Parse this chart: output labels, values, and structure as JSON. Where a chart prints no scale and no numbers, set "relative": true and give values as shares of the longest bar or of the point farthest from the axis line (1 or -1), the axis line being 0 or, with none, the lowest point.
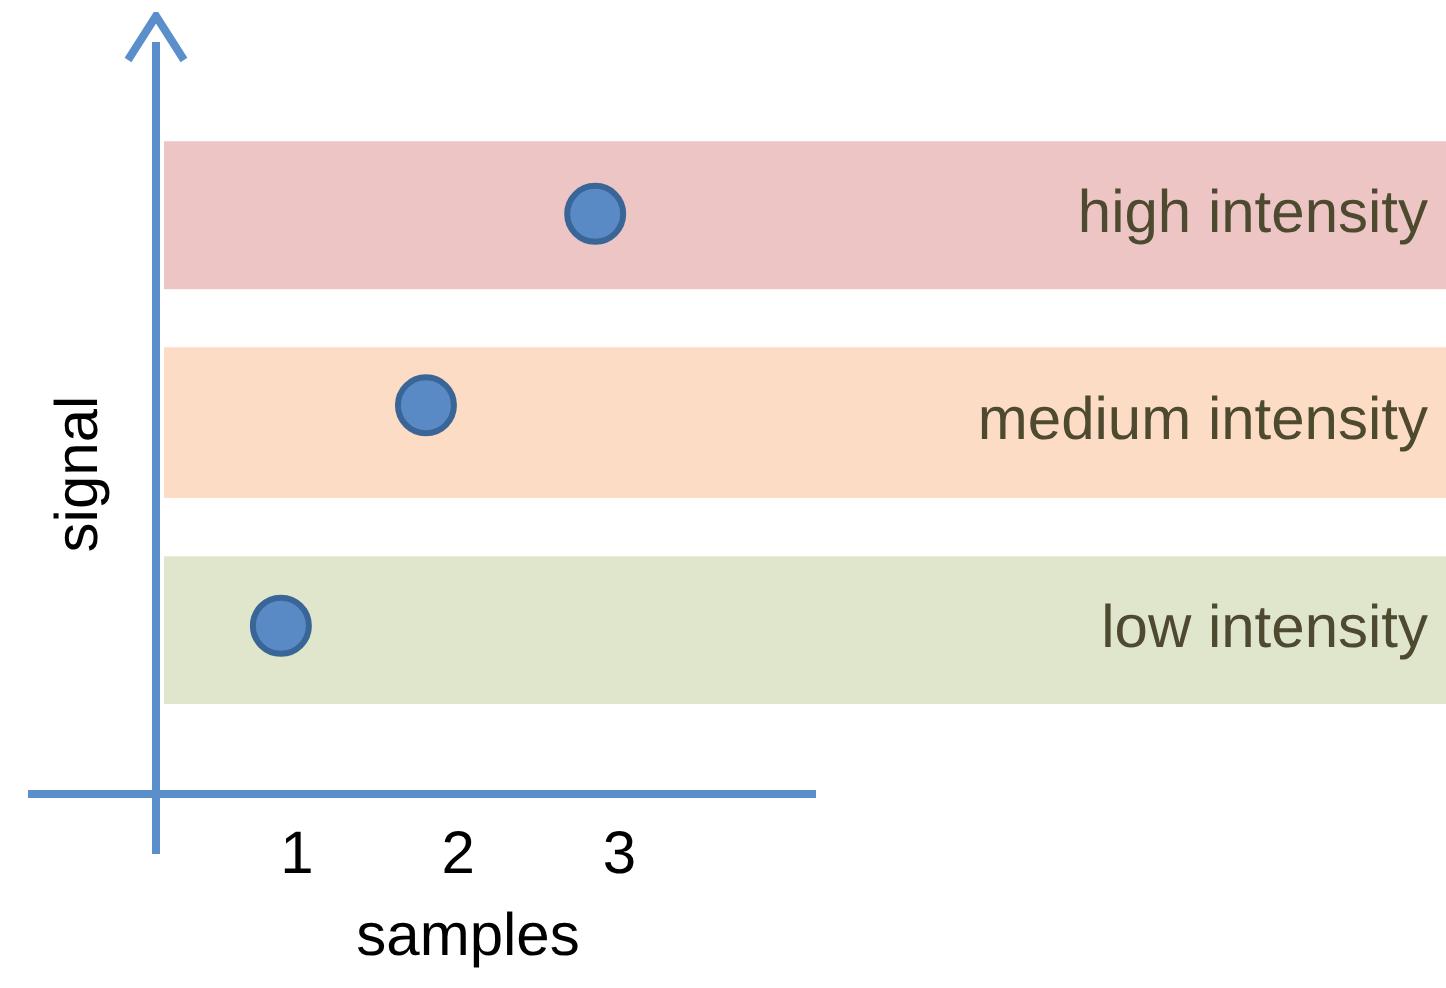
{
  "chart_data": {
    "type": "scatter",
    "xlabel": "samples",
    "ylabel": "signal",
    "x": [
      0.9,
      1.8,
      2.85
    ],
    "values": [
      0.29,
      0.67,
      1
    ],
    "relative": true,
    "color": "#5a8ac6",
    "xlim": [
      0.15,
      4.22
    ],
    "xticks": [
      1,
      2,
      3
    ],
    "legend": false,
    "marker": "circle",
    "bands": [
      {
        "axis": "y",
        "from": 0.87,
        "to": 1.125,
        "label": "high intensity",
        "color": "#ecc5c4"
      },
      {
        "axis": "y",
        "from": 0.51,
        "to": 0.77,
        "label": "medium intensity",
        "color": "#fcdcc4"
      },
      {
        "axis": "y",
        "from": 0.155,
        "to": 0.41,
        "label": "low intensity",
        "color": "#e0e6cc"
      }
    ]
  }
}
